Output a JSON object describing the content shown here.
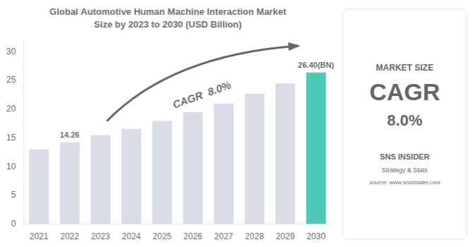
{
  "chart_data": {
    "type": "bar",
    "title": "Global Automotive Human Machine Interaction Market",
    "subtitle": "Size by 2023 to 2030 (USD Billion)",
    "categories": [
      "2021",
      "2022",
      "2023",
      "2024",
      "2025",
      "2026",
      "2027",
      "2028",
      "2029",
      "2030"
    ],
    "values": [
      13.0,
      14.26,
      15.5,
      16.6,
      18.0,
      19.5,
      21.0,
      22.7,
      24.5,
      26.4
    ],
    "colors": [
      "#d8dce6",
      "#d8dce6",
      "#d8dce6",
      "#d8dce6",
      "#d8dce6",
      "#d8dce6",
      "#d8dce6",
      "#d8dce6",
      "#d8dce6",
      "#4ec9b5"
    ],
    "ylim": [
      0,
      32
    ],
    "yticks": [
      0,
      5,
      10,
      15,
      20,
      25,
      30
    ],
    "grid": false,
    "annotations": [
      {
        "text": "14.26",
        "x": "2022",
        "y": 14.26
      },
      {
        "text": "26.40(BN)",
        "x": "2030",
        "y": 26.4
      },
      {
        "text": "CAGR  8.0%"
      }
    ],
    "side_panel": [
      "MARKET SIZE",
      "CAGR",
      "8.0%",
      "SNS INSIDER",
      "Strategy & Stats",
      "source: www.snsinsider.com"
    ]
  }
}
